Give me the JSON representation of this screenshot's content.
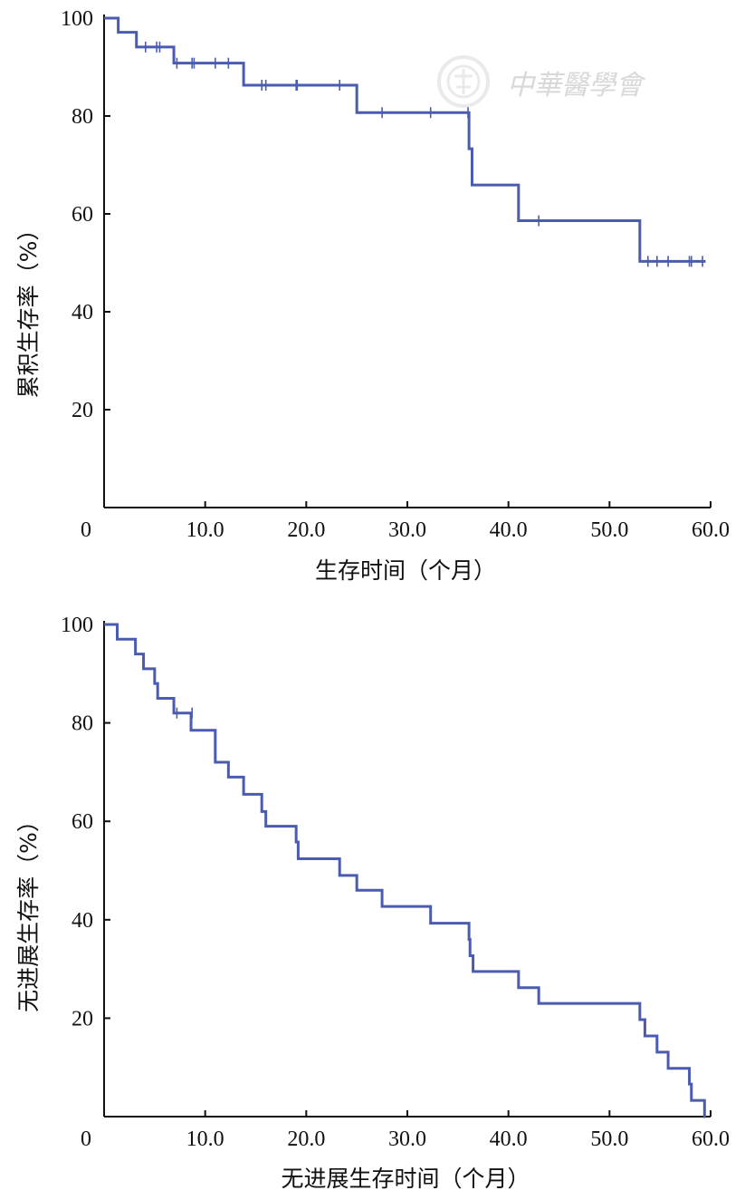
{
  "colors": {
    "curve": "#4a5bb0",
    "axis": "#111111",
    "watermark": "#d9d9d9"
  },
  "watermark": {
    "text": "中華醫學會",
    "icon": "society-seal-icon"
  },
  "chart_data": [
    {
      "type": "line",
      "subtype": "kaplan-meier-step",
      "xlabel": "生存时间（个月）",
      "ylabel": "累积生存率（%）",
      "xlim": [
        0,
        60
      ],
      "ylim": [
        0,
        100
      ],
      "x_ticks": [
        {
          "value": 0,
          "label": "0"
        },
        {
          "value": 10,
          "label": "10.0"
        },
        {
          "value": 20,
          "label": "20.0"
        },
        {
          "value": 30,
          "label": "30.0"
        },
        {
          "value": 40,
          "label": "40.0"
        },
        {
          "value": 50,
          "label": "50.0"
        },
        {
          "value": 60,
          "label": "60.0"
        }
      ],
      "y_ticks": [
        {
          "value": 20,
          "label": "20"
        },
        {
          "value": 40,
          "label": "40"
        },
        {
          "value": 60,
          "label": "60"
        },
        {
          "value": 80,
          "label": "80"
        },
        {
          "value": 100,
          "label": "100"
        }
      ],
      "series": [
        {
          "steps": [
            {
              "x": 0,
              "y": 100
            },
            {
              "x": 1.4,
              "y": 97.1
            },
            {
              "x": 3.2,
              "y": 94.1
            },
            {
              "x": 6.9,
              "y": 90.8
            },
            {
              "x": 13.8,
              "y": 86.3
            },
            {
              "x": 25.0,
              "y": 80.7
            },
            {
              "x": 36.1,
              "y": 73.3
            },
            {
              "x": 36.4,
              "y": 65.9
            },
            {
              "x": 41.0,
              "y": 58.6
            },
            {
              "x": 53.0,
              "y": 50.3
            }
          ],
          "x_end": 59.5,
          "censored": [
            {
              "x": 4.1,
              "y": 94.1
            },
            {
              "x": 5.2,
              "y": 94.1
            },
            {
              "x": 5.5,
              "y": 94.1
            },
            {
              "x": 7.2,
              "y": 90.8
            },
            {
              "x": 8.7,
              "y": 90.8
            },
            {
              "x": 8.9,
              "y": 90.8
            },
            {
              "x": 11.0,
              "y": 90.8
            },
            {
              "x": 12.3,
              "y": 90.8
            },
            {
              "x": 15.6,
              "y": 86.3
            },
            {
              "x": 16.0,
              "y": 86.3
            },
            {
              "x": 19.0,
              "y": 86.3
            },
            {
              "x": 19.1,
              "y": 86.3
            },
            {
              "x": 23.3,
              "y": 86.3
            },
            {
              "x": 27.5,
              "y": 80.7
            },
            {
              "x": 32.3,
              "y": 80.7
            },
            {
              "x": 36.0,
              "y": 80.7
            },
            {
              "x": 43.0,
              "y": 58.6
            },
            {
              "x": 53.8,
              "y": 50.3
            },
            {
              "x": 54.7,
              "y": 50.3
            },
            {
              "x": 55.8,
              "y": 50.3
            },
            {
              "x": 57.9,
              "y": 50.3
            },
            {
              "x": 58.1,
              "y": 50.3
            },
            {
              "x": 59.2,
              "y": 50.3
            }
          ]
        }
      ],
      "grid": false,
      "legend": "none"
    },
    {
      "type": "line",
      "subtype": "kaplan-meier-step",
      "xlabel": "无进展生存时间（个月）",
      "ylabel": "无进展生存率（%）",
      "xlim": [
        0,
        60
      ],
      "ylim": [
        0,
        100
      ],
      "x_ticks": [
        {
          "value": 0,
          "label": "0"
        },
        {
          "value": 10,
          "label": "10.0"
        },
        {
          "value": 20,
          "label": "20.0"
        },
        {
          "value": 30,
          "label": "30.0"
        },
        {
          "value": 40,
          "label": "40.0"
        },
        {
          "value": 50,
          "label": "50.0"
        },
        {
          "value": 60,
          "label": "60.0"
        }
      ],
      "y_ticks": [
        {
          "value": 20,
          "label": "20"
        },
        {
          "value": 40,
          "label": "40"
        },
        {
          "value": 60,
          "label": "60"
        },
        {
          "value": 80,
          "label": "80"
        },
        {
          "value": 100,
          "label": "100"
        }
      ],
      "series": [
        {
          "steps": [
            {
              "x": 0,
              "y": 100
            },
            {
              "x": 1.3,
              "y": 97.0
            },
            {
              "x": 3.1,
              "y": 94.0
            },
            {
              "x": 3.9,
              "y": 91.0
            },
            {
              "x": 5.0,
              "y": 88.0
            },
            {
              "x": 5.3,
              "y": 85.0
            },
            {
              "x": 6.9,
              "y": 82.0
            },
            {
              "x": 8.6,
              "y": 78.5
            },
            {
              "x": 11.0,
              "y": 72.0
            },
            {
              "x": 12.3,
              "y": 69.0
            },
            {
              "x": 13.8,
              "y": 65.5
            },
            {
              "x": 15.6,
              "y": 62.0
            },
            {
              "x": 16.0,
              "y": 59.0
            },
            {
              "x": 19.0,
              "y": 55.8
            },
            {
              "x": 19.2,
              "y": 52.4
            },
            {
              "x": 23.3,
              "y": 49.0
            },
            {
              "x": 25.0,
              "y": 46.0
            },
            {
              "x": 27.5,
              "y": 42.7
            },
            {
              "x": 32.3,
              "y": 39.3
            },
            {
              "x": 36.1,
              "y": 36.0
            },
            {
              "x": 36.2,
              "y": 32.7
            },
            {
              "x": 36.5,
              "y": 29.5
            },
            {
              "x": 41.0,
              "y": 26.2
            },
            {
              "x": 43.0,
              "y": 23.0
            },
            {
              "x": 53.0,
              "y": 19.7
            },
            {
              "x": 53.5,
              "y": 16.4
            },
            {
              "x": 54.7,
              "y": 13.1
            },
            {
              "x": 55.8,
              "y": 9.8
            },
            {
              "x": 57.9,
              "y": 6.6
            },
            {
              "x": 58.1,
              "y": 3.3
            },
            {
              "x": 59.4,
              "y": 0
            }
          ],
          "x_end": 59.5,
          "censored": [
            {
              "x": 7.2,
              "y": 82.0
            },
            {
              "x": 8.7,
              "y": 82.0
            }
          ]
        }
      ],
      "grid": false,
      "legend": "none"
    }
  ]
}
